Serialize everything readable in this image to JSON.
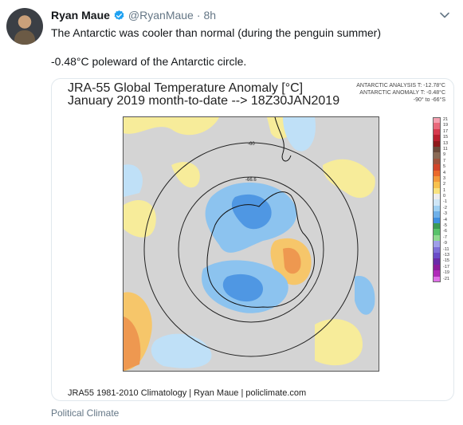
{
  "tweet": {
    "author_name": "Ryan Maue",
    "handle": "@RyanMaue",
    "separator": "·",
    "time": "8h",
    "line1": "The Antarctic was cooler than normal (during the penguin summer)",
    "line2": "-0.48°C poleward of the Antarctic circle."
  },
  "card": {
    "title_line1": "JRA-55 Global Temperature Anomaly [°C]",
    "title_line2": "January 2019 month-to-date --> 18Z30JAN2019",
    "analysis_temp": "ANTARCTIC ANALYSIS T: -12.78°C",
    "analysis_anomaly": "ANTARCTIC ANOMALY T: -0.48°C",
    "analysis_range": "-90° to -66°S",
    "circle_label_outer": "-60",
    "circle_label_inner": "-66.6",
    "footer": "JRA55 1981-2010 Climatology | Ryan Maue | policlimate.com",
    "colorbar": {
      "labels": [
        "21",
        "19",
        "17",
        "15",
        "13",
        "11",
        "9",
        "7",
        "5",
        "4",
        "3",
        "2",
        "1",
        "0",
        "-1",
        "-2",
        "-3",
        "-4",
        "-5",
        "-6",
        "-7",
        "-9",
        "-11",
        "-13",
        "-15",
        "-17",
        "-19",
        "-21"
      ],
      "colors": [
        "#f4a0b0",
        "#e8697b",
        "#d63a4e",
        "#b91f2e",
        "#8e1a1a",
        "#6b4a3a",
        "#8a6a55",
        "#a0523c",
        "#d2452a",
        "#ea6a2c",
        "#f39a3c",
        "#f7c14e",
        "#f9e27f",
        "#ededed",
        "#cfe6f6",
        "#9fd0f2",
        "#6fb0e8",
        "#3f8fe0",
        "#3c9a54",
        "#58c26a",
        "#8fd98f",
        "#9f9fe8",
        "#7f6fd8",
        "#6a4cc8",
        "#6a2aa8",
        "#8c1c9c",
        "#b02ab8",
        "#e070e8"
      ]
    },
    "map_colors": {
      "neutral": "#d4d4d4",
      "warm_light": "#f7ec9a",
      "warm": "#f6c66a",
      "warm_strong": "#ee9850",
      "cool_light": "#bfe0f7",
      "cool": "#8cc3ef",
      "cool_strong": "#4f97e3",
      "coast": "#111111",
      "circle": "#222222"
    }
  },
  "footer_source": "Political Climate"
}
